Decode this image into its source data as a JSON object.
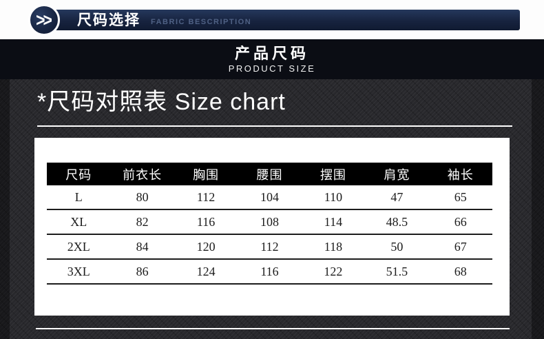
{
  "banner": {
    "chevrons_icon": ">>",
    "title_cn": "尺码选择",
    "subtitle_en": "FABRIC BESCRIPTION"
  },
  "band": {
    "title_cn": "产品尺码",
    "title_en": "PRODUCT SIZE"
  },
  "size_section": {
    "title": "*尺码对照表 Size chart"
  },
  "size_table": {
    "columns": [
      "尺码",
      "前衣长",
      "胸围",
      "腰围",
      "摆围",
      "肩宽",
      "袖长"
    ],
    "rows": [
      [
        "L",
        "80",
        "112",
        "104",
        "110",
        "47",
        "65"
      ],
      [
        "XL",
        "82",
        "116",
        "108",
        "114",
        "48.5",
        "66"
      ],
      [
        "2XL",
        "84",
        "120",
        "112",
        "118",
        "50",
        "67"
      ],
      [
        "3XL",
        "86",
        "124",
        "116",
        "122",
        "51.5",
        "68"
      ]
    ]
  },
  "colors": {
    "accent_navy": "#1b2a4a",
    "band_black": "#0b0d14",
    "panel_background": "#28282c",
    "card_background": "#ffffff",
    "table_header_background": "#000000",
    "rule_white": "#ffffff"
  }
}
